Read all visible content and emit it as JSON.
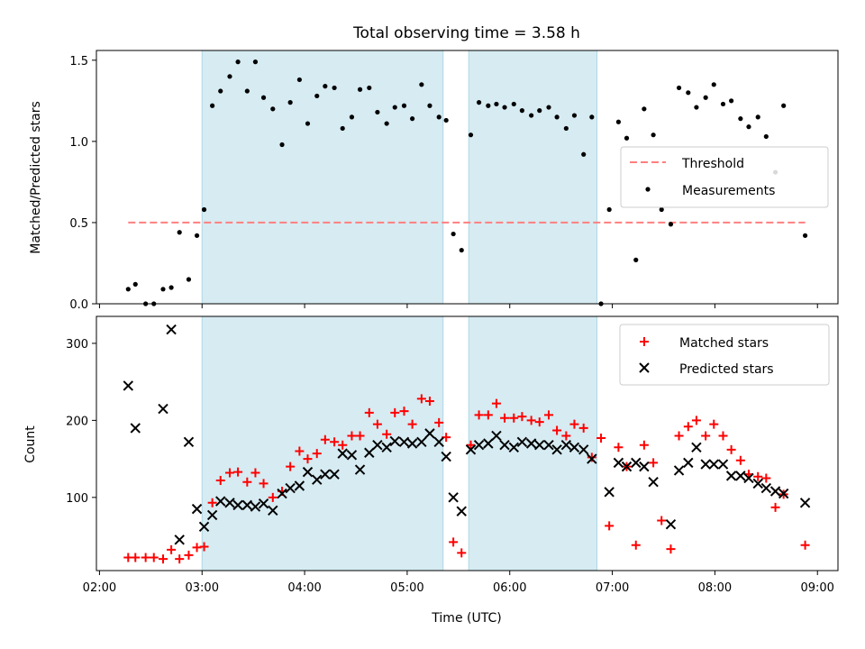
{
  "chart_data": {
    "title": "Total observing time = 3.58 h",
    "xlabel": "Time (UTC)",
    "x_ticks": [
      "02:00",
      "03:00",
      "04:00",
      "05:00",
      "06:00",
      "07:00",
      "08:00",
      "09:00"
    ],
    "x_tick_hours": [
      2,
      3,
      4,
      5,
      6,
      7,
      8,
      9
    ],
    "xlim": [
      1.97,
      9.2
    ],
    "shaded_intervals": [
      [
        3.0,
        5.35
      ],
      [
        5.6,
        6.85
      ]
    ],
    "shade_color": "#add8e6",
    "panels": [
      {
        "type": "scatter",
        "ylabel": "Matched/Predicted stars",
        "ylim": [
          0,
          1.56
        ],
        "y_ticks": [
          0.0,
          0.5,
          1.0,
          1.5
        ],
        "y_tick_labels": [
          "0.0",
          "0.5",
          "1.0",
          "1.5"
        ],
        "threshold": {
          "name": "Threshold",
          "value": 0.5,
          "x_range": [
            2.28,
            8.88
          ],
          "color": "#ff7f7f"
        },
        "series": [
          {
            "name": "Measurements",
            "color": "#000000",
            "marker": "dot",
            "x": [
              2.28,
              2.35,
              2.45,
              2.53,
              2.62,
              2.7,
              2.78,
              2.87,
              2.95,
              3.02,
              3.1,
              3.18,
              3.27,
              3.35,
              3.44,
              3.52,
              3.6,
              3.69,
              3.78,
              3.86,
              3.95,
              4.03,
              4.12,
              4.2,
              4.29,
              4.37,
              4.46,
              4.54,
              4.63,
              4.71,
              4.8,
              4.88,
              4.97,
              5.05,
              5.14,
              5.22,
              5.31,
              5.38,
              5.45,
              5.53,
              5.62,
              5.7,
              5.79,
              5.87,
              5.95,
              6.04,
              6.12,
              6.21,
              6.29,
              6.38,
              6.46,
              6.55,
              6.63,
              6.72,
              6.8,
              6.89,
              6.97,
              7.06,
              7.14,
              7.23,
              7.31,
              7.4,
              7.48,
              7.57,
              7.65,
              7.74,
              7.82,
              7.91,
              7.99,
              8.08,
              8.16,
              8.25,
              8.33,
              8.42,
              8.5,
              8.59,
              8.67,
              8.88
            ],
            "y": [
              0.09,
              0.12,
              0.0,
              0.0,
              0.09,
              0.1,
              0.44,
              0.15,
              0.42,
              0.58,
              1.22,
              1.31,
              1.4,
              1.49,
              1.31,
              1.49,
              1.27,
              1.2,
              0.98,
              1.24,
              1.38,
              1.11,
              1.28,
              1.34,
              1.33,
              1.08,
              1.15,
              1.32,
              1.33,
              1.18,
              1.11,
              1.21,
              1.22,
              1.14,
              1.35,
              1.22,
              1.15,
              1.13,
              0.43,
              0.33,
              1.04,
              1.24,
              1.22,
              1.23,
              1.21,
              1.23,
              1.19,
              1.16,
              1.19,
              1.21,
              1.15,
              1.08,
              1.16,
              0.92,
              1.15,
              0.0,
              0.58,
              1.12,
              1.02,
              0.27,
              1.2,
              1.04,
              0.58,
              0.49,
              1.33,
              1.3,
              1.21,
              1.27,
              1.35,
              1.23,
              1.25,
              1.14,
              1.09,
              1.15,
              1.03,
              0.81,
              1.22,
              0.42
            ]
          }
        ],
        "legend": [
          "Threshold",
          "Measurements"
        ],
        "legend_position": "center-right"
      },
      {
        "type": "scatter",
        "ylabel": "Count",
        "ylim": [
          5,
          335
        ],
        "y_ticks": [
          100,
          200,
          300
        ],
        "y_tick_labels": [
          "100",
          "200",
          "300"
        ],
        "series": [
          {
            "name": "Matched stars",
            "color": "#ff0000",
            "marker": "plus",
            "x": [
              2.28,
              2.35,
              2.45,
              2.53,
              2.62,
              2.7,
              2.78,
              2.87,
              2.95,
              3.02,
              3.1,
              3.18,
              3.27,
              3.35,
              3.44,
              3.52,
              3.6,
              3.69,
              3.78,
              3.86,
              3.95,
              4.03,
              4.12,
              4.2,
              4.29,
              4.37,
              4.46,
              4.54,
              4.63,
              4.71,
              4.8,
              4.88,
              4.97,
              5.05,
              5.14,
              5.22,
              5.31,
              5.38,
              5.45,
              5.53,
              5.62,
              5.7,
              5.79,
              5.87,
              5.95,
              6.04,
              6.12,
              6.21,
              6.29,
              6.38,
              6.46,
              6.55,
              6.63,
              6.72,
              6.8,
              6.89,
              6.97,
              7.06,
              7.14,
              7.23,
              7.31,
              7.4,
              7.48,
              7.57,
              7.65,
              7.74,
              7.82,
              7.91,
              7.99,
              8.08,
              8.16,
              8.25,
              8.33,
              8.42,
              8.5,
              8.59,
              8.67,
              8.88
            ],
            "y": [
              22,
              22,
              22,
              22,
              20,
              32,
              20,
              25,
              35,
              36,
              93,
              122,
              132,
              133,
              120,
              132,
              118,
              100,
              108,
              140,
              160,
              150,
              157,
              175,
              172,
              168,
              180,
              180,
              210,
              195,
              182,
              210,
              212,
              195,
              228,
              225,
              197,
              178,
              42,
              28,
              168,
              207,
              207,
              222,
              203,
              203,
              205,
              200,
              198,
              207,
              187,
              180,
              195,
              190,
              152,
              177,
              63,
              165,
              140,
              38,
              168,
              145,
              70,
              33,
              180,
              192,
              200,
              180,
              195,
              180,
              162,
              148,
              130,
              127,
              125,
              87,
              104,
              38
            ]
          },
          {
            "name": "Predicted stars",
            "color": "#000000",
            "marker": "x",
            "x": [
              2.28,
              2.35,
              2.45,
              2.53,
              2.62,
              2.7,
              2.78,
              2.87,
              2.95,
              3.02,
              3.1,
              3.18,
              3.27,
              3.35,
              3.44,
              3.52,
              3.6,
              3.69,
              3.78,
              3.86,
              3.95,
              4.03,
              4.12,
              4.2,
              4.29,
              4.37,
              4.46,
              4.54,
              4.63,
              4.71,
              4.8,
              4.88,
              4.97,
              5.05,
              5.14,
              5.22,
              5.31,
              5.38,
              5.45,
              5.53,
              5.62,
              5.7,
              5.79,
              5.87,
              5.95,
              6.04,
              6.12,
              6.21,
              6.29,
              6.38,
              6.46,
              6.55,
              6.63,
              6.72,
              6.8,
              6.89,
              6.97,
              7.06,
              7.14,
              7.23,
              7.31,
              7.4,
              7.48,
              7.57,
              7.65,
              7.74,
              7.82,
              7.91,
              7.99,
              8.08,
              8.16,
              8.25,
              8.33,
              8.42,
              8.5,
              8.59,
              8.67,
              8.88
            ],
            "y": [
              245,
              190,
              null,
              null,
              215,
              318,
              45,
              172,
              85,
              62,
              77,
              95,
              93,
              90,
              90,
              88,
              92,
              83,
              105,
              112,
              115,
              133,
              123,
              130,
              130,
              157,
              155,
              136,
              158,
              168,
              165,
              173,
              172,
              170,
              172,
              183,
              172,
              153,
              100,
              82,
              162,
              168,
              170,
              180,
              168,
              165,
              172,
              170,
              168,
              168,
              162,
              168,
              165,
              162,
              150,
              null,
              107,
              145,
              140,
              145,
              140,
              120,
              null,
              65,
              135,
              145,
              165,
              143,
              143,
              143,
              128,
              128,
              125,
              118,
              112,
              108,
              105,
              93
            ]
          }
        ],
        "legend": [
          "Matched stars",
          "Predicted stars"
        ],
        "legend_position": "upper-right"
      }
    ]
  }
}
